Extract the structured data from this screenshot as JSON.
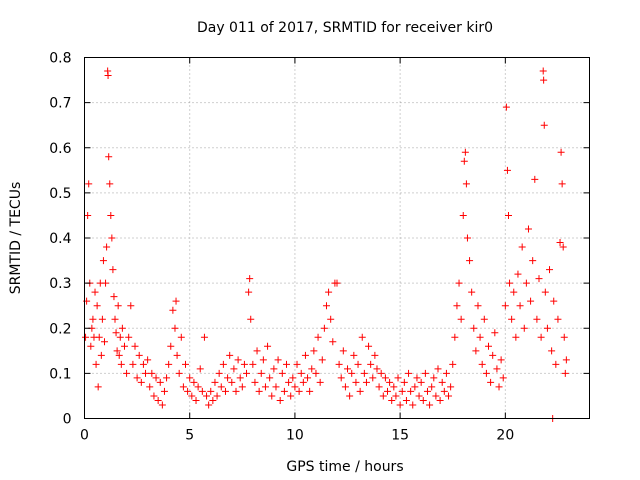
{
  "chart_data": {
    "type": "scatter",
    "title": "Day 011 of 2017, SRMTID for receiver kir0",
    "xlabel": "GPS time / hours",
    "ylabel": "SRMTID / TECUs",
    "xlim": [
      0,
      24
    ],
    "ylim": [
      0,
      0.8
    ],
    "x_ticks": [
      0,
      5,
      10,
      15,
      20
    ],
    "x_tick_labels": [
      "0",
      "5",
      "10",
      "15",
      "20"
    ],
    "y_ticks": [
      0,
      0.1,
      0.2,
      0.3,
      0.4,
      0.5,
      0.6,
      0.7,
      0.8
    ],
    "y_tick_labels": [
      "0",
      "0.1",
      "0.2",
      "0.3",
      "0.4",
      "0.5",
      "0.6",
      "0.7",
      "0.8"
    ],
    "grid": true,
    "marker": "+",
    "marker_color": "#ff0000",
    "series": [
      {
        "name": "SRMTID",
        "points": [
          [
            0.05,
            0.18
          ],
          [
            0.1,
            0.26
          ],
          [
            0.15,
            0.45
          ],
          [
            0.2,
            0.52
          ],
          [
            0.25,
            0.3
          ],
          [
            0.3,
            0.16
          ],
          [
            0.35,
            0.2
          ],
          [
            0.4,
            0.22
          ],
          [
            0.45,
            0.18
          ],
          [
            0.5,
            0.28
          ],
          [
            0.55,
            0.12
          ],
          [
            0.6,
            0.25
          ],
          [
            0.65,
            0.07
          ],
          [
            0.7,
            0.18
          ],
          [
            0.75,
            0.3
          ],
          [
            0.8,
            0.14
          ],
          [
            0.85,
            0.22
          ],
          [
            0.9,
            0.35
          ],
          [
            0.95,
            0.17
          ],
          [
            1.0,
            0.3
          ],
          [
            1.05,
            0.38
          ],
          [
            1.1,
            0.77
          ],
          [
            1.12,
            0.76
          ],
          [
            1.15,
            0.58
          ],
          [
            1.2,
            0.52
          ],
          [
            1.25,
            0.45
          ],
          [
            1.3,
            0.4
          ],
          [
            1.35,
            0.33
          ],
          [
            1.4,
            0.27
          ],
          [
            1.45,
            0.22
          ],
          [
            1.5,
            0.19
          ],
          [
            1.55,
            0.15
          ],
          [
            1.6,
            0.25
          ],
          [
            1.65,
            0.14
          ],
          [
            1.7,
            0.18
          ],
          [
            1.75,
            0.12
          ],
          [
            1.8,
            0.2
          ],
          [
            1.9,
            0.16
          ],
          [
            2.0,
            0.1
          ],
          [
            2.1,
            0.18
          ],
          [
            2.2,
            0.25
          ],
          [
            2.3,
            0.12
          ],
          [
            2.4,
            0.16
          ],
          [
            2.5,
            0.09
          ],
          [
            2.6,
            0.14
          ],
          [
            2.7,
            0.08
          ],
          [
            2.8,
            0.12
          ],
          [
            2.9,
            0.1
          ],
          [
            3.0,
            0.13
          ],
          [
            3.1,
            0.07
          ],
          [
            3.2,
            0.1
          ],
          [
            3.3,
            0.05
          ],
          [
            3.4,
            0.09
          ],
          [
            3.5,
            0.04
          ],
          [
            3.6,
            0.08
          ],
          [
            3.7,
            0.03
          ],
          [
            3.8,
            0.06
          ],
          [
            3.9,
            0.09
          ],
          [
            4.0,
            0.12
          ],
          [
            4.1,
            0.16
          ],
          [
            4.2,
            0.24
          ],
          [
            4.3,
            0.2
          ],
          [
            4.35,
            0.26
          ],
          [
            4.4,
            0.14
          ],
          [
            4.5,
            0.1
          ],
          [
            4.6,
            0.18
          ],
          [
            4.7,
            0.07
          ],
          [
            4.8,
            0.12
          ],
          [
            4.9,
            0.06
          ],
          [
            5.0,
            0.09
          ],
          [
            5.1,
            0.05
          ],
          [
            5.2,
            0.08
          ],
          [
            5.3,
            0.04
          ],
          [
            5.4,
            0.07
          ],
          [
            5.5,
            0.11
          ],
          [
            5.6,
            0.06
          ],
          [
            5.7,
            0.18
          ],
          [
            5.8,
            0.05
          ],
          [
            5.9,
            0.03
          ],
          [
            6.0,
            0.06
          ],
          [
            6.1,
            0.04
          ],
          [
            6.2,
            0.08
          ],
          [
            6.3,
            0.05
          ],
          [
            6.4,
            0.1
          ],
          [
            6.5,
            0.07
          ],
          [
            6.6,
            0.12
          ],
          [
            6.7,
            0.06
          ],
          [
            6.8,
            0.09
          ],
          [
            6.9,
            0.14
          ],
          [
            7.0,
            0.08
          ],
          [
            7.1,
            0.11
          ],
          [
            7.2,
            0.06
          ],
          [
            7.3,
            0.13
          ],
          [
            7.4,
            0.09
          ],
          [
            7.5,
            0.07
          ],
          [
            7.6,
            0.12
          ],
          [
            7.7,
            0.1
          ],
          [
            7.8,
            0.28
          ],
          [
            7.85,
            0.31
          ],
          [
            7.9,
            0.22
          ],
          [
            8.0,
            0.12
          ],
          [
            8.1,
            0.08
          ],
          [
            8.2,
            0.15
          ],
          [
            8.3,
            0.06
          ],
          [
            8.4,
            0.1
          ],
          [
            8.5,
            0.13
          ],
          [
            8.6,
            0.07
          ],
          [
            8.7,
            0.16
          ],
          [
            8.8,
            0.09
          ],
          [
            8.9,
            0.05
          ],
          [
            9.0,
            0.11
          ],
          [
            9.1,
            0.07
          ],
          [
            9.2,
            0.13
          ],
          [
            9.3,
            0.04
          ],
          [
            9.4,
            0.1
          ],
          [
            9.5,
            0.06
          ],
          [
            9.6,
            0.12
          ],
          [
            9.7,
            0.08
          ],
          [
            9.8,
            0.05
          ],
          [
            9.9,
            0.09
          ],
          [
            10.0,
            0.07
          ],
          [
            10.1,
            0.12
          ],
          [
            10.2,
            0.06
          ],
          [
            10.3,
            0.1
          ],
          [
            10.4,
            0.08
          ],
          [
            10.5,
            0.14
          ],
          [
            10.6,
            0.09
          ],
          [
            10.7,
            0.06
          ],
          [
            10.8,
            0.11
          ],
          [
            10.9,
            0.15
          ],
          [
            11.0,
            0.1
          ],
          [
            11.1,
            0.18
          ],
          [
            11.2,
            0.08
          ],
          [
            11.3,
            0.13
          ],
          [
            11.4,
            0.2
          ],
          [
            11.5,
            0.25
          ],
          [
            11.6,
            0.28
          ],
          [
            11.7,
            0.22
          ],
          [
            11.8,
            0.17
          ],
          [
            11.9,
            0.3
          ],
          [
            12.0,
            0.3
          ],
          [
            12.1,
            0.12
          ],
          [
            12.2,
            0.09
          ],
          [
            12.3,
            0.15
          ],
          [
            12.4,
            0.07
          ],
          [
            12.5,
            0.11
          ],
          [
            12.6,
            0.05
          ],
          [
            12.7,
            0.1
          ],
          [
            12.8,
            0.14
          ],
          [
            12.9,
            0.08
          ],
          [
            13.0,
            0.12
          ],
          [
            13.1,
            0.06
          ],
          [
            13.2,
            0.18
          ],
          [
            13.3,
            0.1
          ],
          [
            13.4,
            0.08
          ],
          [
            13.5,
            0.16
          ],
          [
            13.6,
            0.12
          ],
          [
            13.7,
            0.09
          ],
          [
            13.8,
            0.14
          ],
          [
            13.9,
            0.11
          ],
          [
            14.0,
            0.07
          ],
          [
            14.1,
            0.1
          ],
          [
            14.2,
            0.05
          ],
          [
            14.3,
            0.09
          ],
          [
            14.4,
            0.06
          ],
          [
            14.5,
            0.08
          ],
          [
            14.6,
            0.04
          ],
          [
            14.7,
            0.07
          ],
          [
            14.8,
            0.05
          ],
          [
            14.9,
            0.09
          ],
          [
            15.0,
            0.03
          ],
          [
            15.1,
            0.06
          ],
          [
            15.2,
            0.08
          ],
          [
            15.3,
            0.04
          ],
          [
            15.4,
            0.1
          ],
          [
            15.5,
            0.06
          ],
          [
            15.6,
            0.03
          ],
          [
            15.7,
            0.07
          ],
          [
            15.8,
            0.09
          ],
          [
            15.9,
            0.05
          ],
          [
            16.0,
            0.08
          ],
          [
            16.1,
            0.04
          ],
          [
            16.2,
            0.1
          ],
          [
            16.3,
            0.06
          ],
          [
            16.4,
            0.03
          ],
          [
            16.5,
            0.07
          ],
          [
            16.6,
            0.09
          ],
          [
            16.7,
            0.05
          ],
          [
            16.8,
            0.11
          ],
          [
            16.9,
            0.04
          ],
          [
            17.0,
            0.08
          ],
          [
            17.1,
            0.06
          ],
          [
            17.2,
            0.1
          ],
          [
            17.3,
            0.05
          ],
          [
            17.4,
            0.07
          ],
          [
            17.5,
            0.12
          ],
          [
            17.6,
            0.18
          ],
          [
            17.7,
            0.25
          ],
          [
            17.8,
            0.3
          ],
          [
            17.9,
            0.22
          ],
          [
            18.0,
            0.45
          ],
          [
            18.05,
            0.57
          ],
          [
            18.1,
            0.59
          ],
          [
            18.15,
            0.52
          ],
          [
            18.2,
            0.4
          ],
          [
            18.3,
            0.35
          ],
          [
            18.4,
            0.28
          ],
          [
            18.5,
            0.2
          ],
          [
            18.6,
            0.15
          ],
          [
            18.7,
            0.25
          ],
          [
            18.8,
            0.18
          ],
          [
            18.9,
            0.12
          ],
          [
            19.0,
            0.22
          ],
          [
            19.1,
            0.1
          ],
          [
            19.2,
            0.16
          ],
          [
            19.3,
            0.08
          ],
          [
            19.4,
            0.14
          ],
          [
            19.5,
            0.19
          ],
          [
            19.6,
            0.11
          ],
          [
            19.7,
            0.07
          ],
          [
            19.8,
            0.13
          ],
          [
            19.9,
            0.09
          ],
          [
            20.0,
            0.25
          ],
          [
            20.05,
            0.69
          ],
          [
            20.1,
            0.55
          ],
          [
            20.15,
            0.45
          ],
          [
            20.2,
            0.3
          ],
          [
            20.3,
            0.22
          ],
          [
            20.4,
            0.28
          ],
          [
            20.5,
            0.18
          ],
          [
            20.6,
            0.32
          ],
          [
            20.7,
            0.25
          ],
          [
            20.8,
            0.38
          ],
          [
            20.9,
            0.2
          ],
          [
            21.0,
            0.3
          ],
          [
            21.1,
            0.42
          ],
          [
            21.2,
            0.26
          ],
          [
            21.3,
            0.35
          ],
          [
            21.4,
            0.53
          ],
          [
            21.5,
            0.22
          ],
          [
            21.6,
            0.31
          ],
          [
            21.7,
            0.18
          ],
          [
            21.8,
            0.77
          ],
          [
            21.82,
            0.75
          ],
          [
            21.85,
            0.65
          ],
          [
            21.9,
            0.28
          ],
          [
            22.0,
            0.2
          ],
          [
            22.1,
            0.33
          ],
          [
            22.2,
            0.15
          ],
          [
            22.3,
            0.26
          ],
          [
            22.4,
            0.12
          ],
          [
            22.5,
            0.22
          ],
          [
            22.6,
            0.39
          ],
          [
            22.65,
            0.59
          ],
          [
            22.7,
            0.52
          ],
          [
            22.75,
            0.38
          ],
          [
            22.8,
            0.18
          ],
          [
            22.85,
            0.1
          ],
          [
            22.9,
            0.13
          ],
          [
            22.25,
            0.0
          ]
        ]
      }
    ]
  }
}
